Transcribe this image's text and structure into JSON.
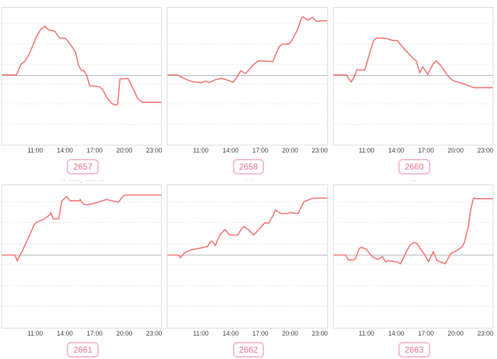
{
  "colors": {
    "line": "#f56e6e",
    "zero_line": "#b3b3b3",
    "grid_line": "#ededed",
    "panel_border": "#dcdcdc",
    "tick_text": "#3c3c3c",
    "badge_text": "#e9708f",
    "badge_border": "#f6bccb",
    "mini_title_text": "#9a9a9a"
  },
  "chart_data": {
    "type": "line",
    "layout": "2 rows x 3 columns small multiples",
    "x_tick_labels": [
      "11:00",
      "14:00",
      "17:00",
      "20:00",
      "23:00"
    ],
    "x_axis": "time of day",
    "y_axis": "unlabeled relative value; solid gray zero baseline at mid-height",
    "grid": "faint dashed horizontal gridlines",
    "legend": "none",
    "zero_baseline_pct": 49,
    "charts": [
      {
        "label": "2657",
        "title_fragment": "",
        "points": [
          [
            0,
            0
          ],
          [
            9,
            0
          ],
          [
            12,
            8
          ],
          [
            14,
            9.5
          ],
          [
            17,
            15
          ],
          [
            21,
            26.5
          ],
          [
            24,
            33
          ],
          [
            27,
            35.5
          ],
          [
            29,
            33
          ],
          [
            33,
            32
          ],
          [
            36,
            27
          ],
          [
            40,
            26.5
          ],
          [
            43,
            22
          ],
          [
            46,
            17
          ],
          [
            48,
            7
          ],
          [
            50,
            3
          ],
          [
            51,
            3.5
          ],
          [
            53,
            0
          ],
          [
            55,
            -8
          ],
          [
            61,
            -8.5
          ],
          [
            63,
            -10.5
          ],
          [
            66,
            -17
          ],
          [
            69,
            -21
          ],
          [
            71,
            -22
          ],
          [
            72.5,
            -21.5
          ],
          [
            74,
            -3
          ],
          [
            79,
            -2.5
          ],
          [
            82,
            -9.5
          ],
          [
            85,
            -17
          ],
          [
            88,
            -20
          ],
          [
            100,
            -20
          ]
        ]
      },
      {
        "label": "2658",
        "title_fragment": "·· ····· ···· ··",
        "points": [
          [
            0,
            0
          ],
          [
            6,
            0
          ],
          [
            12,
            -3.5
          ],
          [
            16,
            -5
          ],
          [
            21,
            -5.7
          ],
          [
            24,
            -4.5
          ],
          [
            26,
            -5.7
          ],
          [
            30,
            -3.5
          ],
          [
            34,
            -2.5
          ],
          [
            38,
            -4
          ],
          [
            41,
            -5.5
          ],
          [
            44,
            -1
          ],
          [
            46,
            3
          ],
          [
            49,
            1
          ],
          [
            54,
            7.5
          ],
          [
            57,
            10.3
          ],
          [
            64,
            10
          ],
          [
            66,
            9.5
          ],
          [
            70,
            20.5
          ],
          [
            72,
            22.5
          ],
          [
            76,
            22.5
          ],
          [
            78,
            25
          ],
          [
            82,
            34
          ],
          [
            84,
            41.5
          ],
          [
            85,
            42.5
          ],
          [
            88,
            40
          ],
          [
            91,
            42
          ],
          [
            93.5,
            39
          ],
          [
            96,
            39.5
          ],
          [
            100,
            39.5
          ]
        ]
      },
      {
        "label": "2660",
        "title_fragment": "·· ····· ···· ··",
        "points": [
          [
            0,
            0
          ],
          [
            8,
            0
          ],
          [
            11,
            -5.2
          ],
          [
            13,
            -1
          ],
          [
            14.5,
            3.7
          ],
          [
            19.5,
            3.5
          ],
          [
            23,
            17.5
          ],
          [
            25,
            25
          ],
          [
            27,
            27
          ],
          [
            33,
            26.7
          ],
          [
            36.5,
            25.3
          ],
          [
            40,
            25
          ],
          [
            45,
            18
          ],
          [
            50,
            12
          ],
          [
            52,
            10
          ],
          [
            54,
            1.5
          ],
          [
            56,
            6
          ],
          [
            59,
            0.3
          ],
          [
            62.5,
            8.2
          ],
          [
            64.5,
            10.3
          ],
          [
            68,
            5.7
          ],
          [
            71,
            0.3
          ],
          [
            74,
            -3.5
          ],
          [
            76,
            -4.7
          ],
          [
            81,
            -6.3
          ],
          [
            86,
            -8.5
          ],
          [
            88,
            -9.3
          ],
          [
            100,
            -9.3
          ]
        ]
      },
      {
        "label": "2661",
        "title_fragment": "·· ····, ···· ··",
        "points": [
          [
            0,
            0
          ],
          [
            8,
            0
          ],
          [
            9.5,
            -4
          ],
          [
            13,
            3.7
          ],
          [
            16.5,
            12
          ],
          [
            20,
            21
          ],
          [
            21,
            22.6
          ],
          [
            26,
            25
          ],
          [
            30,
            28.3
          ],
          [
            30.5,
            30
          ],
          [
            32,
            25.4
          ],
          [
            35.5,
            25.4
          ],
          [
            37.5,
            38
          ],
          [
            40.5,
            41
          ],
          [
            42.5,
            38.2
          ],
          [
            48.5,
            38
          ],
          [
            49,
            39
          ],
          [
            51,
            35.7
          ],
          [
            53.5,
            35.2
          ],
          [
            59.5,
            36.8
          ],
          [
            65.5,
            39
          ],
          [
            73,
            37
          ],
          [
            76,
            41.5
          ],
          [
            78,
            42.1
          ],
          [
            100,
            42.1
          ]
        ]
      },
      {
        "label": "2662",
        "title_fragment": "· ·",
        "points": [
          [
            0,
            0
          ],
          [
            7,
            0
          ],
          [
            8,
            -2
          ],
          [
            11,
            2
          ],
          [
            15,
            3.7
          ],
          [
            19,
            4.5
          ],
          [
            25,
            6
          ],
          [
            27,
            9.4
          ],
          [
            28,
            9.8
          ],
          [
            30,
            6.6
          ],
          [
            32.5,
            13.5
          ],
          [
            36,
            18
          ],
          [
            39,
            14
          ],
          [
            44,
            14
          ],
          [
            46.5,
            18.5
          ],
          [
            48,
            20
          ],
          [
            51,
            17.6
          ],
          [
            54,
            14
          ],
          [
            58.5,
            19.3
          ],
          [
            61,
            22.6
          ],
          [
            63.5,
            22.4
          ],
          [
            66.5,
            28.3
          ],
          [
            67.5,
            31.6
          ],
          [
            71.5,
            29.1
          ],
          [
            75.5,
            29.1
          ],
          [
            77,
            30
          ],
          [
            80,
            29.2
          ],
          [
            82,
            29.2
          ],
          [
            85.5,
            37.3
          ],
          [
            88,
            38.5
          ],
          [
            91,
            39.8
          ],
          [
            100,
            40
          ]
        ]
      },
      {
        "label": "2663",
        "title_fragment": "··",
        "points": [
          [
            0,
            0
          ],
          [
            7.5,
            0
          ],
          [
            9,
            -3.1
          ],
          [
            11.5,
            -3.6
          ],
          [
            13.5,
            -3
          ],
          [
            16,
            4.6
          ],
          [
            17.5,
            5.4
          ],
          [
            20.5,
            4.1
          ],
          [
            23.5,
            -0.3
          ],
          [
            26,
            -2.3
          ],
          [
            28,
            -3
          ],
          [
            30.5,
            -1
          ],
          [
            32.5,
            -4.7
          ],
          [
            34.5,
            -4
          ],
          [
            39.5,
            -4.7
          ],
          [
            42,
            -6.1
          ],
          [
            45.5,
            2.1
          ],
          [
            48,
            7.1
          ],
          [
            50.5,
            8.9
          ],
          [
            52,
            8.4
          ],
          [
            57,
            0.5
          ],
          [
            59.5,
            -4.7
          ],
          [
            62.5,
            2.4
          ],
          [
            65,
            -4
          ],
          [
            68,
            -5.2
          ],
          [
            70,
            -6.1
          ],
          [
            73.5,
            1
          ],
          [
            75.5,
            2.1
          ],
          [
            78,
            3.7
          ],
          [
            80.5,
            5.7
          ],
          [
            82,
            8.6
          ],
          [
            84.5,
            20
          ],
          [
            86,
            31.6
          ],
          [
            87.5,
            39
          ],
          [
            88,
            40.1
          ],
          [
            89,
            39.5
          ],
          [
            100,
            39.5
          ]
        ]
      }
    ]
  }
}
